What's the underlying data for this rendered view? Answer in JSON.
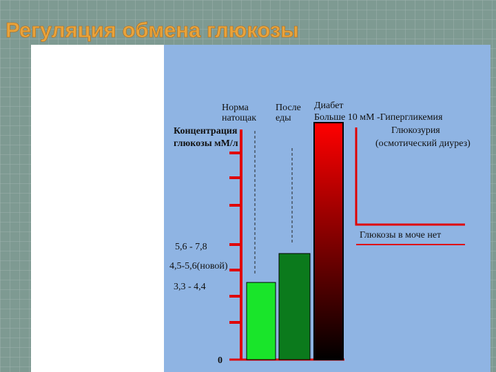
{
  "header": {
    "title": "Регуляция обмена глюкозы"
  },
  "diagram": {
    "axis_label": [
      "Концентрация",
      "глюкозы мМ/л"
    ],
    "columns": [
      {
        "label": [
          "Норма",
          "натощак"
        ]
      },
      {
        "label": [
          "После",
          "еды"
        ]
      },
      {
        "label": [
          "Диабет",
          "Больше 10 мМ -Гипергликемия"
        ]
      }
    ],
    "glucosuria": [
      "Глюкозурия",
      "(осмотический диурез)"
    ],
    "no_glucose": "Глюкозы в моче нет",
    "levels": [
      "5,6 - 7,8",
      "4,5-5,6(новой)",
      "3,3 - 4,4",
      "0"
    ]
  }
}
